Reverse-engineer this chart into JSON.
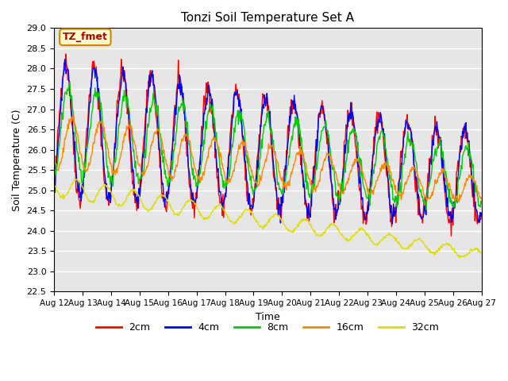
{
  "title": "Tonzi Soil Temperature Set A",
  "xlabel": "Time",
  "ylabel": "Soil Temperature (C)",
  "ylim": [
    22.5,
    29.0
  ],
  "annotation_text": "TZ_fmet",
  "legend_labels": [
    "2cm",
    "4cm",
    "8cm",
    "16cm",
    "32cm"
  ],
  "line_colors": [
    "#ff0000",
    "#0000ee",
    "#00cc00",
    "#ff8800",
    "#dddd00"
  ],
  "background_color": "#e6e6e6",
  "tick_labels": [
    "Aug 12",
    "Aug 13",
    "Aug 14",
    "Aug 15",
    "Aug 16",
    "Aug 17",
    "Aug 18",
    "Aug 19",
    "Aug 20",
    "Aug 21",
    "Aug 22",
    "Aug 23",
    "Aug 24",
    "Aug 25",
    "Aug 26",
    "Aug 27"
  ]
}
